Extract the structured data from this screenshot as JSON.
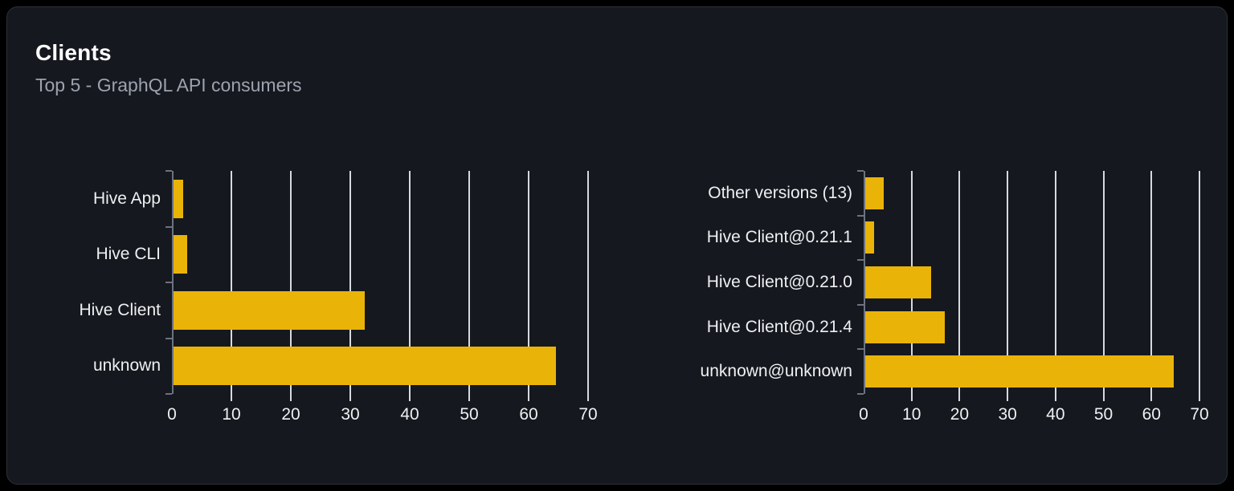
{
  "card": {
    "title": "Clients",
    "subtitle": "Top 5 - GraphQL API consumers"
  },
  "colors": {
    "page_bg": "#000000",
    "card_bg": "#15181e",
    "border": "#2c3037",
    "title": "#ffffff",
    "subtitle": "#9ca3af",
    "label": "#eef0f2",
    "bar": "#eab308",
    "gridline": "#d6d9de",
    "axis": "#6b7280"
  },
  "chart_data": [
    {
      "type": "bar",
      "orientation": "horizontal",
      "title": "",
      "categories": [
        "Hive App",
        "Hive CLI",
        "Hive Client",
        "unknown"
      ],
      "values": [
        1.6,
        2.3,
        32.2,
        64.3
      ],
      "xlim": [
        0,
        70
      ],
      "xticks": [
        0,
        10,
        20,
        30,
        40,
        50,
        60,
        70
      ],
      "grid": true,
      "legend": "none",
      "bar_color": "#eab308"
    },
    {
      "type": "bar",
      "orientation": "horizontal",
      "title": "",
      "categories": [
        "Other versions (13)",
        "Hive Client@0.21.1",
        "Hive Client@0.21.0",
        "Hive Client@0.21.4",
        "unknown@unknown"
      ],
      "values": [
        3.9,
        1.9,
        13.8,
        16.5,
        64.3
      ],
      "xlim": [
        0,
        70
      ],
      "xticks": [
        0,
        10,
        20,
        30,
        40,
        50,
        60,
        70
      ],
      "grid": true,
      "legend": "none",
      "bar_color": "#eab308"
    }
  ]
}
